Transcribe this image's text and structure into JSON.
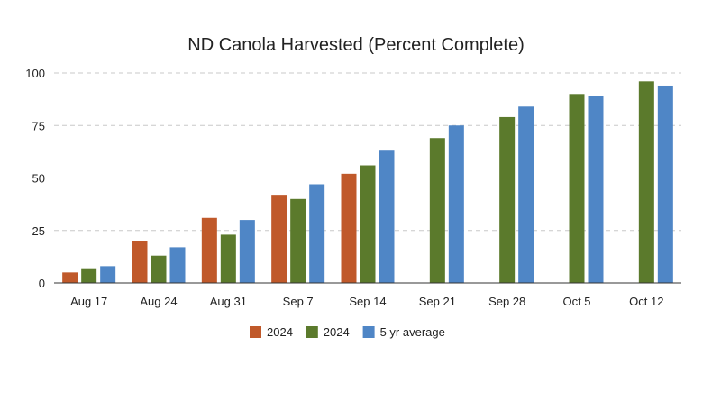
{
  "chart_data": {
    "type": "bar",
    "title": "ND Canola Harvested (Percent Complete)",
    "xlabel": "",
    "ylabel": "",
    "categories": [
      "Aug 17",
      "Aug 24",
      "Aug 31",
      "Sep 7",
      "Sep 14",
      "Sep 21",
      "Sep 28",
      "Oct 5",
      "Oct 12"
    ],
    "ylim": [
      0,
      100
    ],
    "yticks": [
      0,
      25,
      50,
      75,
      100
    ],
    "grid": true,
    "legend_position": "bottom-center",
    "series": [
      {
        "name": "2024",
        "color": "#c0592a",
        "values": [
          5,
          20,
          31,
          42,
          52,
          null,
          null,
          null,
          null
        ]
      },
      {
        "name": "2024",
        "color": "#5b7a2c",
        "values": [
          7,
          13,
          23,
          40,
          56,
          69,
          79,
          90,
          96
        ]
      },
      {
        "name": "5 yr average",
        "color": "#4f86c6",
        "values": [
          8,
          17,
          30,
          47,
          63,
          75,
          84,
          89,
          94
        ]
      }
    ]
  }
}
